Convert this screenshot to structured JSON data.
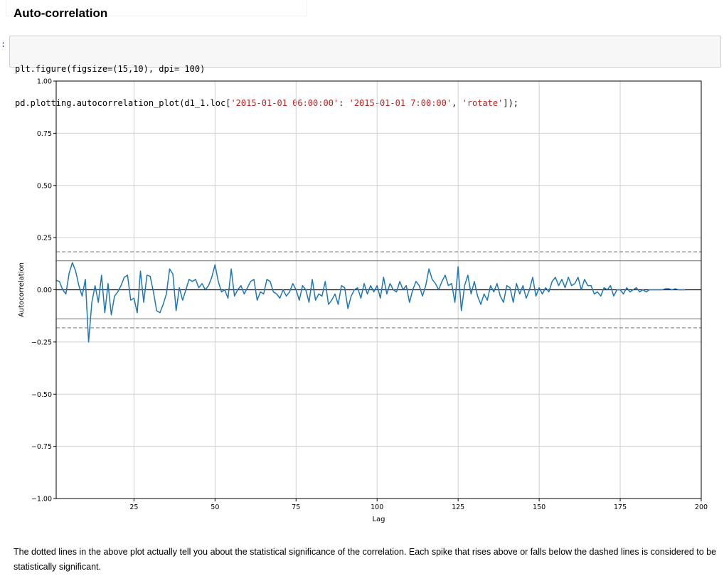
{
  "heading": "Auto-correlation",
  "prompt": ":",
  "code": {
    "line1": [
      {
        "t": "plt.figure(figsize=(15,10), dpi= 100)",
        "c": ""
      }
    ],
    "line2": [
      {
        "t": "pd.plotting.autocorrelation_plot(d1_1.loc[",
        "c": ""
      },
      {
        "t": "'2015-01-01 06:00:00'",
        "c": "tok-str"
      },
      {
        "t": ": ",
        "c": ""
      },
      {
        "t": "'2015-01-01 7:00:00'",
        "c": "tok-str"
      },
      {
        "t": ", ",
        "c": ""
      },
      {
        "t": "'rotate'",
        "c": "tok-str"
      },
      {
        "t": "]);",
        "c": ""
      }
    ]
  },
  "chart_data": {
    "type": "line",
    "xlabel": "Lag",
    "ylabel": "Autocorrelation",
    "xlim": [
      1,
      200
    ],
    "ylim": [
      -1.0,
      1.0
    ],
    "xticks": [
      25,
      50,
      75,
      100,
      125,
      150,
      175,
      200
    ],
    "yticks": [
      1.0,
      0.75,
      0.5,
      0.25,
      0.0,
      -0.25,
      -0.5,
      -0.75,
      -1.0
    ],
    "ytick_labels": [
      "1.00",
      "0.75",
      "0.50",
      "0.25",
      "0.00",
      "−0.25",
      "−0.50",
      "−0.75",
      "−1.00"
    ],
    "grid": true,
    "confidence_99": 0.182,
    "confidence_95": 0.139,
    "line_color": "#1f77b4",
    "values": [
      0.045,
      0.04,
      0.0,
      -0.02,
      0.08,
      0.13,
      0.09,
      0.02,
      -0.03,
      0.05,
      -0.25,
      -0.06,
      0.02,
      -0.06,
      0.07,
      -0.11,
      0.03,
      -0.12,
      -0.03,
      -0.01,
      0.02,
      0.06,
      0.07,
      -0.05,
      -0.04,
      -0.11,
      0.09,
      -0.06,
      0.07,
      0.065,
      -0.01,
      -0.1,
      -0.11,
      -0.07,
      -0.02,
      0.1,
      0.075,
      -0.1,
      0.01,
      -0.05,
      0.0,
      0.05,
      0.04,
      0.05,
      0.01,
      0.03,
      0.0,
      0.02,
      0.06,
      0.12,
      0.04,
      -0.01,
      0.0,
      -0.04,
      0.1,
      -0.03,
      0.0,
      0.02,
      -0.02,
      0.01,
      0.04,
      0.05,
      -0.05,
      -0.01,
      -0.02,
      0.05,
      0.04,
      -0.01,
      -0.02,
      -0.04,
      0.0,
      -0.03,
      -0.01,
      0.03,
      0.0,
      -0.05,
      0.02,
      0.0,
      -0.06,
      0.05,
      -0.05,
      -0.02,
      -0.03,
      0.04,
      -0.07,
      -0.05,
      -0.02,
      -0.07,
      0.02,
      0.01,
      -0.09,
      -0.03,
      0.0,
      0.01,
      -0.04,
      0.03,
      -0.02,
      0.02,
      -0.01,
      0.02,
      -0.04,
      0.06,
      -0.02,
      0.03,
      0.0,
      -0.01,
      0.04,
      0.0,
      0.02,
      -0.06,
      0.0,
      0.04,
      0.02,
      -0.03,
      0.02,
      0.1,
      0.05,
      0.03,
      0.0,
      0.04,
      0.07,
      0.02,
      0.03,
      -0.06,
      0.11,
      -0.1,
      0.02,
      0.07,
      -0.02,
      0.04,
      -0.03,
      -0.07,
      -0.02,
      -0.05,
      0.02,
      -0.01,
      0.03,
      -0.03,
      -0.06,
      0.02,
      0.01,
      -0.06,
      0.03,
      -0.02,
      0.02,
      -0.04,
      0.0,
      0.06,
      -0.03,
      0.01,
      -0.02,
      0.01,
      -0.01,
      0.04,
      0.06,
      0.02,
      0.05,
      0.01,
      0.06,
      0.02,
      0.03,
      0.06,
      0.0,
      0.05,
      0.02,
      0.02,
      -0.02,
      -0.01,
      -0.03,
      0.01,
      0.0,
      0.02,
      -0.03,
      0.0,
      0.0,
      -0.02,
      0.01,
      -0.01,
      0.0,
      0.01,
      -0.01,
      0.0,
      -0.01,
      0.0,
      0.0,
      0.0,
      0.0,
      0.0,
      0.005,
      0.005,
      0.0,
      0.005,
      0.0,
      0.0,
      0.0
    ]
  },
  "caption": "The dotted lines in the above plot actually tell you about the statistical significance of the correlation. Each spike that rises above or falls below the dashed lines is considered to be statistically significant."
}
